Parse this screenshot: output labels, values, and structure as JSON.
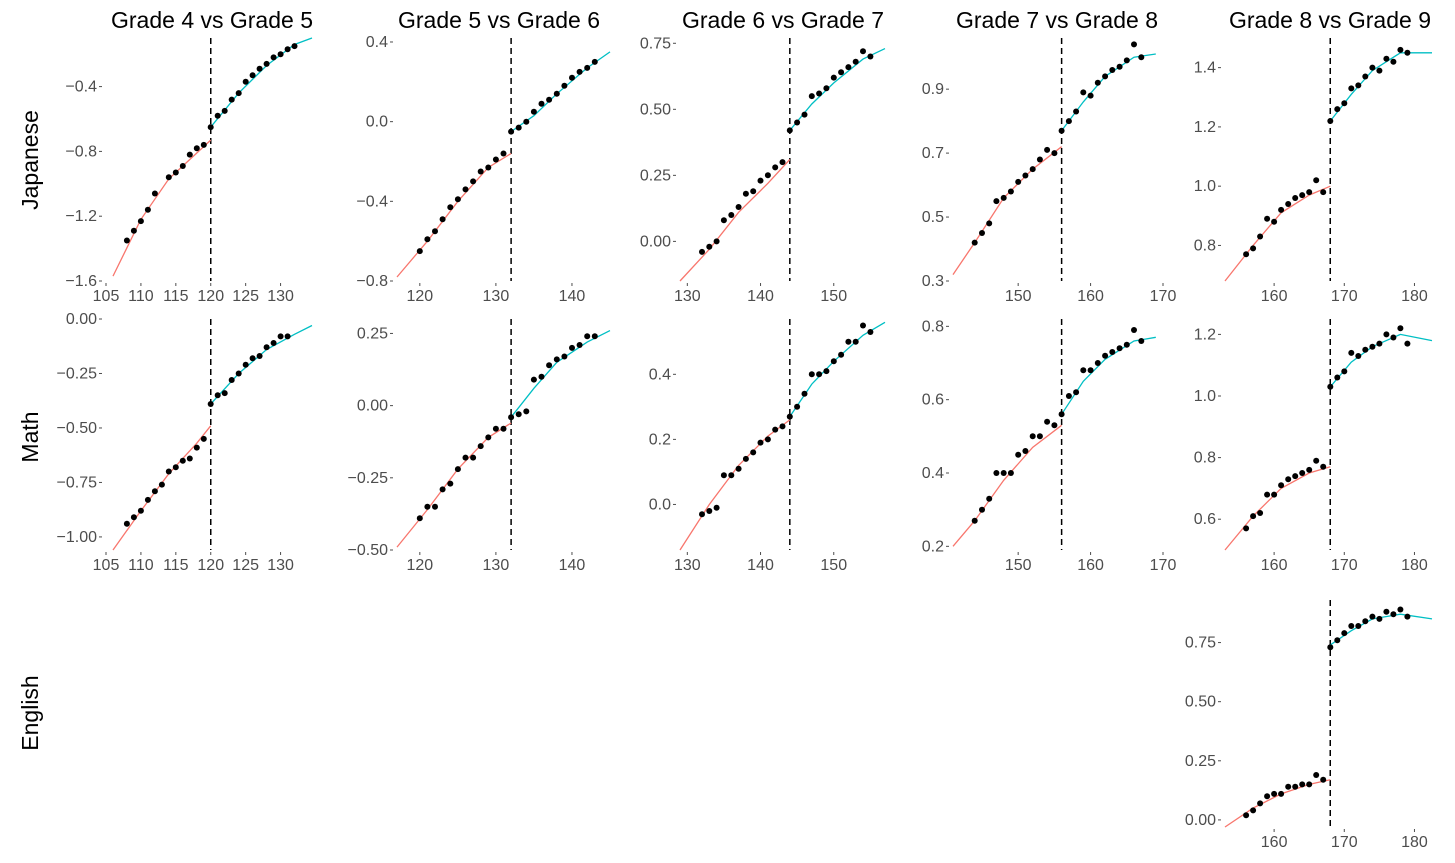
{
  "colors": {
    "left_fit": "#F8766D",
    "right_fit": "#00BFC4",
    "points": "#000000",
    "tick_text": "#4d4d4d"
  },
  "column_titles": [
    "Grade 4 vs Grade 5",
    "Grade 5 vs Grade 6",
    "Grade 6 vs Grade 7",
    "Grade 7 vs Grade 8",
    "Grade 8 vs Grade 9"
  ],
  "row_titles": [
    "Japanese",
    "Math",
    "English"
  ],
  "chart_data": [
    {
      "type": "scatter",
      "row": 0,
      "col": 0,
      "subject": "Japanese",
      "comparison": "Grade 4 vs Grade 5",
      "cutoff": 120,
      "xlim": [
        105,
        134.5
      ],
      "ylim": [
        -1.6,
        -0.1
      ],
      "xticks": [
        "105",
        "110",
        "115",
        "120",
        "125",
        "130"
      ],
      "yticks": [
        "-1.6",
        "-1.2",
        "-0.8",
        "-0.4"
      ],
      "x": [
        108,
        109,
        110,
        111,
        112,
        114,
        115,
        116,
        117,
        118,
        119,
        120,
        121,
        122,
        123,
        124,
        125,
        126,
        127,
        128,
        129,
        130,
        131,
        132
      ],
      "y": [
        -1.35,
        -1.29,
        -1.23,
        -1.16,
        -1.06,
        -0.96,
        -0.93,
        -0.89,
        -0.82,
        -0.78,
        -0.76,
        -0.65,
        -0.58,
        -0.55,
        -0.48,
        -0.44,
        -0.37,
        -0.33,
        -0.29,
        -0.26,
        -0.22,
        -0.2,
        -0.17,
        -0.15
      ],
      "fit_left": [
        [
          106,
          -1.57
        ],
        [
          110,
          -1.22
        ],
        [
          114,
          -0.97
        ],
        [
          118,
          -0.81
        ],
        [
          120,
          -0.73
        ]
      ],
      "fit_right": [
        [
          120,
          -0.65
        ],
        [
          124,
          -0.44
        ],
        [
          128,
          -0.27
        ],
        [
          132,
          -0.14
        ],
        [
          134.5,
          -0.1
        ]
      ]
    },
    {
      "type": "scatter",
      "row": 0,
      "col": 1,
      "subject": "Japanese",
      "comparison": "Grade 5 vs Grade 6",
      "cutoff": 132,
      "xlim": [
        117,
        145
      ],
      "ylim": [
        -0.8,
        0.42
      ],
      "xticks": [
        "120",
        "130",
        "140"
      ],
      "yticks": [
        "-0.8",
        "-0.4",
        "0.0",
        "0.4"
      ],
      "x": [
        120,
        121,
        122,
        123,
        124,
        125,
        126,
        127,
        128,
        129,
        130,
        131,
        132,
        133,
        134,
        135,
        136,
        137,
        138,
        139,
        140,
        141,
        142,
        143
      ],
      "y": [
        -0.65,
        -0.59,
        -0.55,
        -0.49,
        -0.43,
        -0.39,
        -0.34,
        -0.3,
        -0.25,
        -0.23,
        -0.19,
        -0.16,
        -0.05,
        -0.03,
        0.0,
        0.05,
        0.09,
        0.11,
        0.14,
        0.18,
        0.22,
        0.25,
        0.27,
        0.3
      ],
      "fit_left": [
        [
          117,
          -0.78
        ],
        [
          121,
          -0.6
        ],
        [
          125,
          -0.4
        ],
        [
          129,
          -0.23
        ],
        [
          132,
          -0.16
        ]
      ],
      "fit_right": [
        [
          132,
          -0.05
        ],
        [
          135,
          0.03
        ],
        [
          138,
          0.14
        ],
        [
          142,
          0.27
        ],
        [
          145,
          0.35
        ]
      ]
    },
    {
      "type": "scatter",
      "row": 0,
      "col": 2,
      "subject": "Japanese",
      "comparison": "Grade 6 vs Grade 7",
      "cutoff": 144,
      "xlim": [
        129,
        157
      ],
      "ylim": [
        -0.15,
        0.77
      ],
      "xticks": [
        "130",
        "140",
        "150"
      ],
      "yticks": [
        "0.00",
        "0.25",
        "0.50",
        "0.75"
      ],
      "x": [
        132,
        133,
        134,
        135,
        136,
        137,
        138,
        139,
        140,
        141,
        142,
        143,
        144,
        145,
        146,
        147,
        148,
        149,
        150,
        151,
        152,
        153,
        154,
        155
      ],
      "y": [
        -0.04,
        -0.02,
        0.0,
        0.08,
        0.1,
        0.13,
        0.18,
        0.19,
        0.23,
        0.25,
        0.28,
        0.3,
        0.42,
        0.45,
        0.48,
        0.55,
        0.56,
        0.58,
        0.62,
        0.64,
        0.66,
        0.68,
        0.72,
        0.7
      ],
      "fit_left": [
        [
          129,
          -0.15
        ],
        [
          133,
          -0.03
        ],
        [
          137,
          0.11
        ],
        [
          141,
          0.22
        ],
        [
          144,
          0.31
        ]
      ],
      "fit_right": [
        [
          144,
          0.42
        ],
        [
          147,
          0.52
        ],
        [
          150,
          0.6
        ],
        [
          154,
          0.69
        ],
        [
          157,
          0.73
        ]
      ]
    },
    {
      "type": "scatter",
      "row": 0,
      "col": 3,
      "subject": "Japanese",
      "comparison": "Grade 7 vs Grade 8",
      "cutoff": 156,
      "xlim": [
        141,
        170
      ],
      "ylim": [
        0.3,
        1.06
      ],
      "xticks": [
        "150",
        "160",
        "170"
      ],
      "yticks": [
        "0.3",
        "0.5",
        "0.7",
        "0.9"
      ],
      "x": [
        144,
        145,
        146,
        147,
        148,
        149,
        150,
        151,
        152,
        153,
        154,
        155,
        156,
        157,
        158,
        159,
        160,
        161,
        162,
        163,
        164,
        165,
        166,
        167
      ],
      "y": [
        0.42,
        0.45,
        0.48,
        0.55,
        0.56,
        0.58,
        0.61,
        0.63,
        0.65,
        0.68,
        0.71,
        0.7,
        0.77,
        0.8,
        0.83,
        0.89,
        0.88,
        0.92,
        0.94,
        0.96,
        0.97,
        0.99,
        1.04,
        1.0
      ],
      "fit_left": [
        [
          141,
          0.32
        ],
        [
          144,
          0.42
        ],
        [
          148,
          0.56
        ],
        [
          152,
          0.65
        ],
        [
          156,
          0.72
        ]
      ],
      "fit_right": [
        [
          156,
          0.77
        ],
        [
          159,
          0.86
        ],
        [
          162,
          0.94
        ],
        [
          166,
          1.0
        ],
        [
          169,
          1.01
        ]
      ]
    },
    {
      "type": "scatter",
      "row": 0,
      "col": 4,
      "subject": "Japanese",
      "comparison": "Grade 8 vs Grade 9",
      "cutoff": 168,
      "xlim": [
        153,
        182.5
      ],
      "ylim": [
        0.68,
        1.5
      ],
      "xticks": [
        "160",
        "170",
        "180"
      ],
      "yticks": [
        "0.8",
        "1.0",
        "1.2",
        "1.4"
      ],
      "x": [
        156,
        157,
        158,
        159,
        160,
        161,
        162,
        163,
        164,
        165,
        166,
        167,
        168,
        169,
        170,
        171,
        172,
        173,
        174,
        175,
        176,
        177,
        178,
        179
      ],
      "y": [
        0.77,
        0.79,
        0.83,
        0.89,
        0.88,
        0.92,
        0.94,
        0.96,
        0.97,
        0.98,
        1.02,
        0.98,
        1.22,
        1.26,
        1.28,
        1.33,
        1.34,
        1.37,
        1.4,
        1.39,
        1.43,
        1.42,
        1.46,
        1.45
      ],
      "fit_left": [
        [
          153,
          0.68
        ],
        [
          157,
          0.8
        ],
        [
          161,
          0.91
        ],
        [
          165,
          0.97
        ],
        [
          168,
          1.0
        ]
      ],
      "fit_right": [
        [
          168,
          1.22
        ],
        [
          171,
          1.31
        ],
        [
          174,
          1.39
        ],
        [
          178,
          1.45
        ],
        [
          182.5,
          1.45
        ]
      ]
    },
    {
      "type": "scatter",
      "row": 1,
      "col": 0,
      "subject": "Math",
      "comparison": "Grade 4 vs Grade 5",
      "cutoff": 120,
      "xlim": [
        105,
        134.5
      ],
      "ylim": [
        -1.06,
        0.0
      ],
      "xticks": [
        "105",
        "110",
        "115",
        "120",
        "125",
        "130"
      ],
      "yticks": [
        "-1.00",
        "-0.75",
        "-0.50",
        "-0.25",
        "0.00"
      ],
      "x": [
        108,
        109,
        110,
        111,
        112,
        113,
        114,
        115,
        116,
        117,
        118,
        119,
        120,
        121,
        122,
        123,
        124,
        125,
        126,
        127,
        128,
        129,
        130,
        131
      ],
      "y": [
        -0.94,
        -0.91,
        -0.88,
        -0.83,
        -0.79,
        -0.76,
        -0.7,
        -0.68,
        -0.65,
        -0.64,
        -0.59,
        -0.55,
        -0.39,
        -0.35,
        -0.34,
        -0.28,
        -0.25,
        -0.21,
        -0.18,
        -0.17,
        -0.13,
        -0.11,
        -0.08,
        -0.08
      ],
      "fit_left": [
        [
          106,
          -1.06
        ],
        [
          110,
          -0.88
        ],
        [
          114,
          -0.71
        ],
        [
          118,
          -0.57
        ],
        [
          120,
          -0.49
        ]
      ],
      "fit_right": [
        [
          120,
          -0.39
        ],
        [
          124,
          -0.25
        ],
        [
          128,
          -0.14
        ],
        [
          132,
          -0.07
        ],
        [
          134.5,
          -0.03
        ]
      ]
    },
    {
      "type": "scatter",
      "row": 1,
      "col": 1,
      "subject": "Math",
      "comparison": "Grade 5 vs Grade 6",
      "cutoff": 132,
      "xlim": [
        117,
        145
      ],
      "ylim": [
        -0.5,
        0.3
      ],
      "xticks": [
        "120",
        "130",
        "140"
      ],
      "yticks": [
        "-0.50",
        "-0.25",
        "0.00",
        "0.25"
      ],
      "x": [
        120,
        121,
        122,
        123,
        124,
        125,
        126,
        127,
        128,
        129,
        130,
        131,
        132,
        133,
        134,
        135,
        136,
        137,
        138,
        139,
        140,
        141,
        142,
        143
      ],
      "y": [
        -0.39,
        -0.35,
        -0.35,
        -0.29,
        -0.27,
        -0.22,
        -0.18,
        -0.18,
        -0.14,
        -0.11,
        -0.08,
        -0.08,
        -0.04,
        -0.03,
        -0.02,
        0.09,
        0.1,
        0.14,
        0.16,
        0.17,
        0.2,
        0.21,
        0.24,
        0.24
      ],
      "fit_left": [
        [
          117,
          -0.49
        ],
        [
          121,
          -0.36
        ],
        [
          125,
          -0.22
        ],
        [
          129,
          -0.11
        ],
        [
          132,
          -0.06
        ]
      ],
      "fit_right": [
        [
          132,
          -0.04
        ],
        [
          135,
          0.06
        ],
        [
          138,
          0.15
        ],
        [
          142,
          0.22
        ],
        [
          145,
          0.26
        ]
      ]
    },
    {
      "type": "scatter",
      "row": 1,
      "col": 2,
      "subject": "Math",
      "comparison": "Grade 6 vs Grade 7",
      "cutoff": 144,
      "xlim": [
        129,
        157
      ],
      "ylim": [
        -0.14,
        0.57
      ],
      "xticks": [
        "130",
        "140",
        "150"
      ],
      "yticks": [
        "0.0",
        "0.2",
        "0.4"
      ],
      "x": [
        132,
        133,
        134,
        135,
        136,
        137,
        138,
        139,
        140,
        141,
        142,
        143,
        144,
        145,
        146,
        147,
        148,
        149,
        150,
        151,
        152,
        153,
        154,
        155
      ],
      "y": [
        -0.03,
        -0.02,
        -0.01,
        0.09,
        0.09,
        0.11,
        0.14,
        0.16,
        0.19,
        0.2,
        0.23,
        0.24,
        0.27,
        0.3,
        0.34,
        0.4,
        0.4,
        0.41,
        0.44,
        0.46,
        0.5,
        0.5,
        0.55,
        0.53
      ],
      "fit_left": [
        [
          129,
          -0.14
        ],
        [
          133,
          0.0
        ],
        [
          137,
          0.12
        ],
        [
          141,
          0.21
        ],
        [
          144,
          0.26
        ]
      ],
      "fit_right": [
        [
          144,
          0.27
        ],
        [
          147,
          0.37
        ],
        [
          150,
          0.44
        ],
        [
          154,
          0.52
        ],
        [
          157,
          0.56
        ]
      ]
    },
    {
      "type": "scatter",
      "row": 1,
      "col": 3,
      "subject": "Math",
      "comparison": "Grade 7 vs Grade 8",
      "cutoff": 156,
      "xlim": [
        141,
        170
      ],
      "ylim": [
        0.19,
        0.82
      ],
      "xticks": [
        "150",
        "160",
        "170"
      ],
      "yticks": [
        "0.2",
        "0.4",
        "0.6",
        "0.8"
      ],
      "x": [
        144,
        145,
        146,
        147,
        148,
        149,
        150,
        151,
        152,
        153,
        154,
        155,
        156,
        157,
        158,
        159,
        160,
        161,
        162,
        163,
        164,
        165,
        166,
        167
      ],
      "y": [
        0.27,
        0.3,
        0.33,
        0.4,
        0.4,
        0.4,
        0.45,
        0.46,
        0.5,
        0.5,
        0.54,
        0.53,
        0.56,
        0.61,
        0.62,
        0.68,
        0.68,
        0.7,
        0.72,
        0.73,
        0.74,
        0.75,
        0.79,
        0.76
      ],
      "fit_left": [
        [
          141,
          0.2
        ],
        [
          144,
          0.27
        ],
        [
          148,
          0.38
        ],
        [
          152,
          0.47
        ],
        [
          156,
          0.53
        ]
      ],
      "fit_right": [
        [
          156,
          0.56
        ],
        [
          159,
          0.65
        ],
        [
          162,
          0.71
        ],
        [
          166,
          0.76
        ],
        [
          169,
          0.77
        ]
      ]
    },
    {
      "type": "scatter",
      "row": 1,
      "col": 4,
      "subject": "Math",
      "comparison": "Grade 8 vs Grade 9",
      "cutoff": 168,
      "xlim": [
        153,
        182.5
      ],
      "ylim": [
        0.5,
        1.25
      ],
      "xticks": [
        "160",
        "170",
        "180"
      ],
      "yticks": [
        "0.6",
        "0.8",
        "1.0",
        "1.2"
      ],
      "x": [
        156,
        157,
        158,
        159,
        160,
        161,
        162,
        163,
        164,
        165,
        166,
        167,
        168,
        169,
        170,
        171,
        172,
        173,
        174,
        175,
        176,
        177,
        178,
        179
      ],
      "y": [
        0.57,
        0.61,
        0.62,
        0.68,
        0.68,
        0.71,
        0.73,
        0.74,
        0.75,
        0.76,
        0.79,
        0.77,
        1.03,
        1.06,
        1.08,
        1.14,
        1.13,
        1.15,
        1.16,
        1.17,
        1.2,
        1.19,
        1.22,
        1.17
      ],
      "fit_left": [
        [
          153,
          0.5
        ],
        [
          157,
          0.61
        ],
        [
          161,
          0.7
        ],
        [
          165,
          0.75
        ],
        [
          168,
          0.77
        ]
      ],
      "fit_right": [
        [
          168,
          1.03
        ],
        [
          171,
          1.11
        ],
        [
          174,
          1.16
        ],
        [
          178,
          1.2
        ],
        [
          182.5,
          1.18
        ]
      ]
    },
    {
      "type": "scatter",
      "row": 2,
      "col": 4,
      "subject": "English",
      "comparison": "Grade 8 vs Grade 9",
      "cutoff": 168,
      "xlim": [
        153,
        182.5
      ],
      "ylim": [
        -0.03,
        0.93
      ],
      "xticks": [
        "160",
        "170",
        "180"
      ],
      "yticks": [
        "0.00",
        "0.25",
        "0.50",
        "0.75"
      ],
      "x": [
        156,
        157,
        158,
        159,
        160,
        161,
        162,
        163,
        164,
        165,
        166,
        167,
        168,
        169,
        170,
        171,
        172,
        173,
        174,
        175,
        176,
        177,
        178,
        179
      ],
      "y": [
        0.02,
        0.04,
        0.07,
        0.1,
        0.11,
        0.11,
        0.14,
        0.14,
        0.15,
        0.15,
        0.19,
        0.17,
        0.73,
        0.76,
        0.79,
        0.82,
        0.82,
        0.84,
        0.86,
        0.85,
        0.88,
        0.87,
        0.89,
        0.86
      ],
      "fit_left": [
        [
          153,
          -0.03
        ],
        [
          157,
          0.05
        ],
        [
          161,
          0.11
        ],
        [
          165,
          0.15
        ],
        [
          168,
          0.17
        ]
      ],
      "fit_right": [
        [
          168,
          0.74
        ],
        [
          171,
          0.8
        ],
        [
          174,
          0.85
        ],
        [
          178,
          0.87
        ],
        [
          182.5,
          0.85
        ]
      ]
    }
  ]
}
